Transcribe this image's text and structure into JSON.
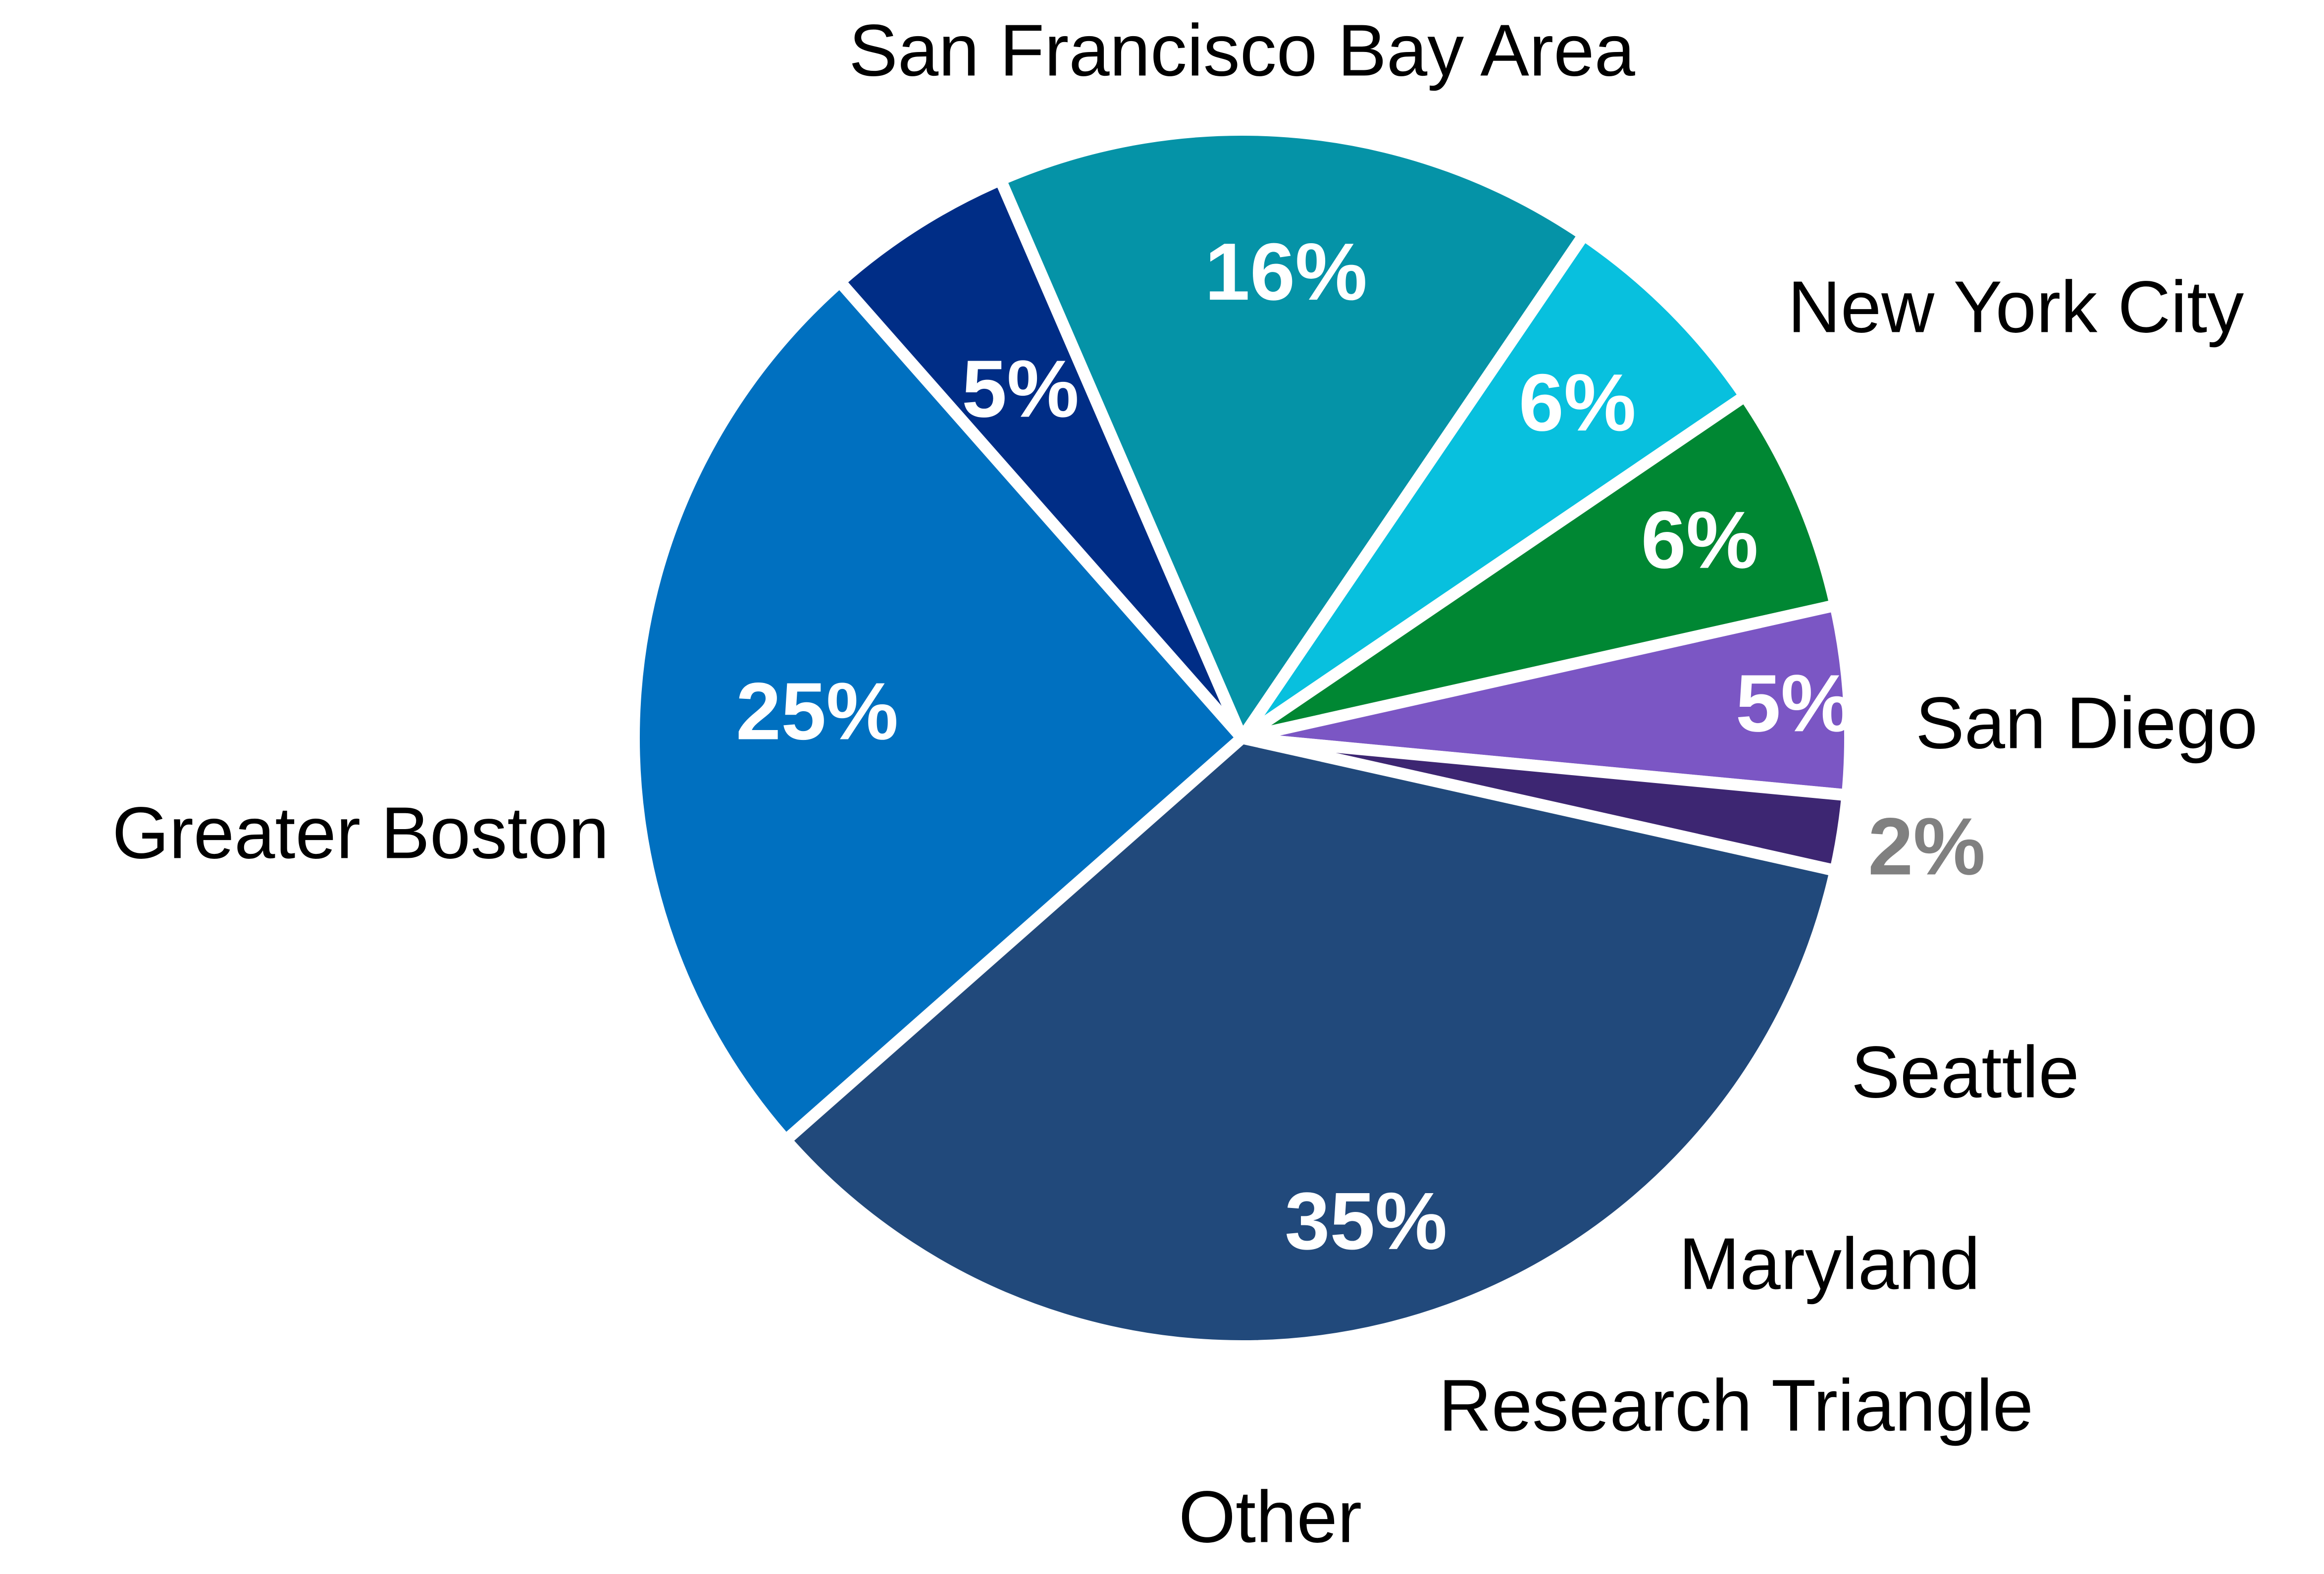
{
  "chart_data": {
    "type": "pie",
    "title": "",
    "slices": [
      {
        "label": "San Francisco Bay Area",
        "value": 25,
        "value_label": "25%",
        "color": "#0070C0",
        "value_color": "#FFFFFF"
      },
      {
        "label": "New York City",
        "value": 5,
        "value_label": "5%",
        "color": "#002D86",
        "value_color": "#FFFFFF"
      },
      {
        "label": "San Diego",
        "value": 16,
        "value_label": "16%",
        "color": "#0593A7",
        "value_color": "#FFFFFF"
      },
      {
        "label": "Seattle",
        "value": 6,
        "value_label": "6%",
        "color": "#08C0DE",
        "value_color": "#FFFFFF"
      },
      {
        "label": "Maryland",
        "value": 6,
        "value_label": "6%",
        "color": "#008733",
        "value_color": "#FFFFFF"
      },
      {
        "label": "Research Triangle",
        "value": 5,
        "value_label": "5%",
        "color": "#7B56C4",
        "value_color": "#FFFFFF"
      },
      {
        "label": "Other",
        "value": 2,
        "value_label": "2%",
        "color": "#3D2672",
        "value_color": "#808080"
      },
      {
        "label": "Greater Boston",
        "value": 35,
        "value_label": "35%",
        "color": "#21497B",
        "value_color": "#FFFFFF"
      }
    ]
  }
}
